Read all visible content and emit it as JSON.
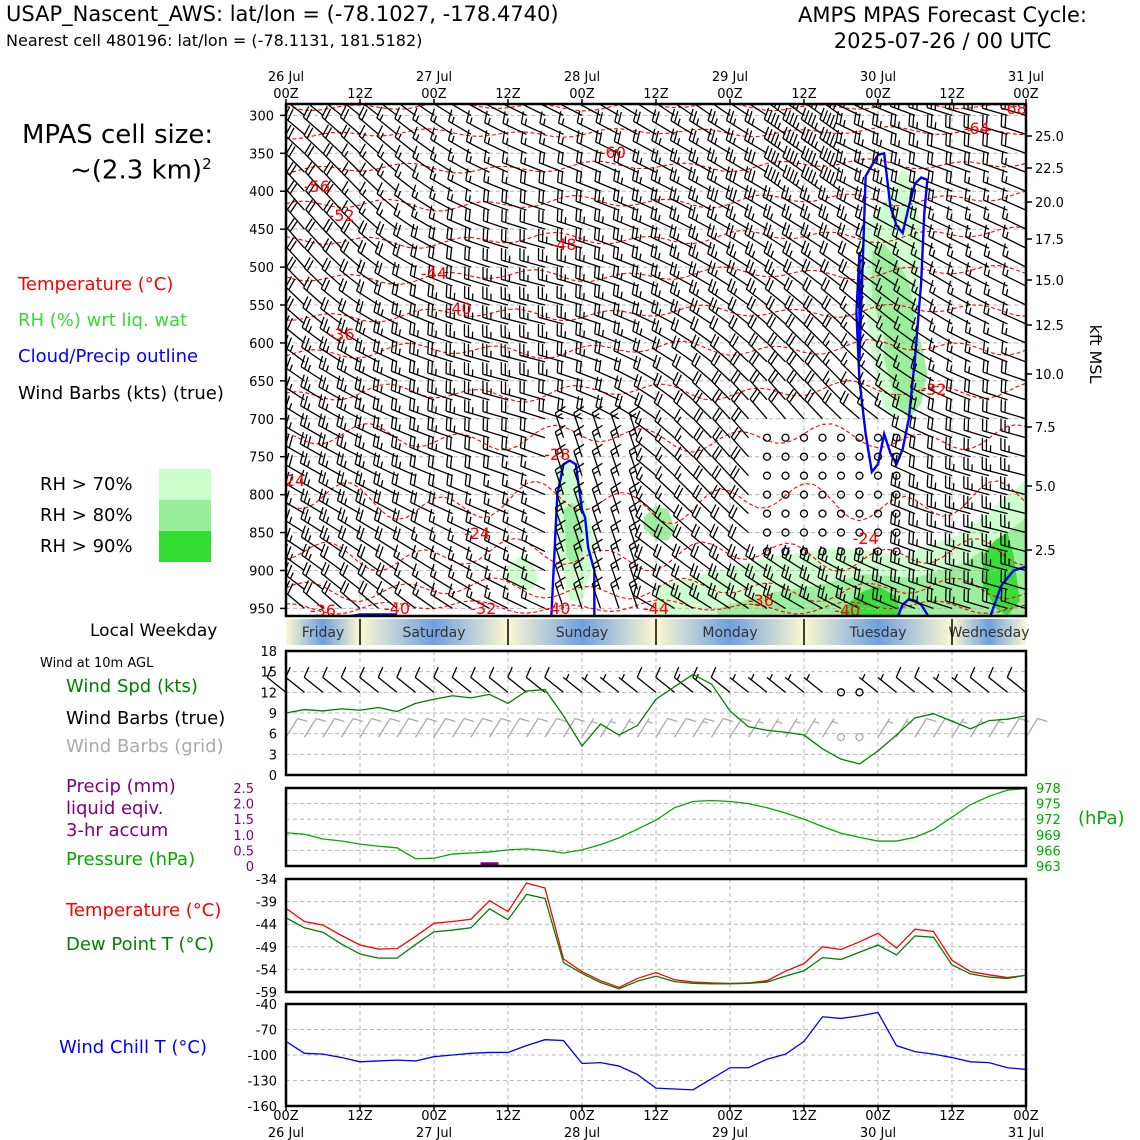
{
  "header": {
    "station_line": "USAP_Nascent_AWS: lat/lon = (-78.1027, -178.4740)",
    "cell_line": "Nearest cell 480196: lat/lon = (-78.1131, 181.5182)",
    "cycle_line1": "AMPS MPAS Forecast Cycle:",
    "cycle_line2": "2025-07-26 / 00 UTC"
  },
  "cell_size": {
    "line1": "MPAS cell size:",
    "line2": "~(2.3 km)",
    "sup": "2"
  },
  "legend": {
    "temperature": {
      "label": "Temperature (°C)",
      "color": "#ff0000"
    },
    "rh": {
      "label": "RH (%) wrt liq. wat",
      "color": "#33dd33"
    },
    "cloud": {
      "label": "Cloud/Precip outline",
      "color": "#0000ff"
    },
    "barbs": {
      "label": "Wind Barbs (kts) (true)",
      "color": "#000000"
    },
    "rh70": {
      "label": "RH > 70%",
      "color": "#ccffcc"
    },
    "rh80": {
      "label": "RH > 80%",
      "color": "#99ee99"
    },
    "rh90": {
      "label": "RH > 90%",
      "color": "#33dd33"
    }
  },
  "time_axis": {
    "top_labels": [
      {
        "hour": "00Z",
        "date": "26 Jul"
      },
      {
        "hour": "12Z",
        "date": ""
      },
      {
        "hour": "00Z",
        "date": "27 Jul"
      },
      {
        "hour": "12Z",
        "date": ""
      },
      {
        "hour": "00Z",
        "date": "28 Jul"
      },
      {
        "hour": "12Z",
        "date": ""
      },
      {
        "hour": "00Z",
        "date": "29 Jul"
      },
      {
        "hour": "12Z",
        "date": ""
      },
      {
        "hour": "00Z",
        "date": "30 Jul"
      },
      {
        "hour": "12Z",
        "date": ""
      },
      {
        "hour": "00Z",
        "date": "31 Jul"
      }
    ],
    "hours_range": [
      0,
      120
    ]
  },
  "weekday_bar": {
    "label": "Local Weekday",
    "days": [
      "Friday",
      "Saturday",
      "Sunday",
      "Monday",
      "Tuesday",
      "Wednesday"
    ]
  },
  "panels": {
    "wind": {
      "title": "Wind at 10m AGL",
      "spd_label": "Wind Spd (kts)",
      "true_label": "Wind Barbs (true)",
      "grid_label": "Wind Barbs (grid)",
      "colors": {
        "spd": "#008000",
        "true": "#000000",
        "grid": "#aaaaaa"
      }
    },
    "precip": {
      "precip_label1": "Precip (mm)",
      "precip_label2": "liquid eqiv.",
      "precip_label3": "3-hr accum",
      "pressure_label": "Pressure (hPa)",
      "hpa_unit": "(hPa)",
      "colors": {
        "precip": "#800080",
        "pressure": "#00aa00"
      }
    },
    "temp": {
      "t_label": "Temperature (°C)",
      "td_label": "Dew Point T (°C)",
      "colors": {
        "t": "#ff0000",
        "td": "#008000"
      }
    },
    "chill": {
      "label": "Wind Chill T (°C)",
      "color": "#0000ff"
    }
  },
  "chart_data": [
    {
      "type": "heatmap",
      "x_unit": "forecast hours from 2025-07-26 00 UTC",
      "y_left_ticks": [
        300,
        350,
        400,
        450,
        500,
        550,
        600,
        650,
        700,
        750,
        800,
        850,
        900,
        950
      ],
      "y_right_ticks": [
        "25.0",
        "22.5",
        "20.0",
        "17.5",
        "15.0",
        "12.5",
        "10.0",
        "7.5",
        "5.0",
        "2.5"
      ],
      "y_right_label": "kft MSL",
      "ylim_hpa": [
        285,
        960
      ],
      "temp_contour_labels": [
        "-68",
        "-64",
        "-60",
        "-56",
        "-52",
        "-48",
        "-44",
        "-40",
        "-36",
        "-32",
        "-28",
        "-24",
        "-24",
        "-24",
        "-36",
        "-40",
        "-32",
        "-40",
        "-44",
        "-36",
        "-40"
      ]
    },
    {
      "type": "line",
      "name": "wind_speed_10m",
      "ylim": [
        0,
        18
      ],
      "yticks": [
        0,
        3,
        6,
        9,
        12,
        15,
        18
      ],
      "x": [
        0,
        3,
        6,
        9,
        12,
        15,
        18,
        21,
        24,
        27,
        30,
        33,
        36,
        39,
        42,
        45,
        48,
        51,
        54,
        57,
        60,
        63,
        66,
        69,
        72,
        75,
        78,
        81,
        84,
        87,
        90,
        93,
        96,
        99,
        102,
        105,
        108,
        111,
        114,
        117,
        120
      ],
      "values": [
        9,
        9.5,
        9.3,
        9.6,
        9.4,
        9.8,
        9.2,
        10.4,
        11.0,
        11.5,
        11.2,
        11.7,
        10.4,
        12.2,
        12.4,
        8.6,
        4.2,
        7.4,
        5.8,
        7.2,
        11.0,
        12.8,
        14.6,
        13.2,
        9.3,
        7.0,
        6.5,
        6.2,
        5.8,
        3.8,
        2.3,
        1.6,
        3.5,
        5.8,
        8.3,
        8.9,
        7.8,
        6.7,
        7.9,
        8.1,
        8.6
      ]
    },
    {
      "type": "line",
      "name": "precip_pressure",
      "precip_ylim": [
        0,
        2.5
      ],
      "precip_yticks": [
        "0",
        "0.5",
        "1.0",
        "1.5",
        "2.0",
        "2.5"
      ],
      "pressure_ylim": [
        963,
        978
      ],
      "pressure_yticks": [
        963,
        966,
        969,
        972,
        975,
        978
      ],
      "x": [
        0,
        3,
        6,
        9,
        12,
        15,
        18,
        21,
        24,
        27,
        30,
        33,
        36,
        39,
        42,
        45,
        48,
        51,
        54,
        57,
        60,
        63,
        66,
        69,
        72,
        75,
        78,
        81,
        84,
        87,
        90,
        93,
        96,
        99,
        102,
        105,
        108,
        111,
        114,
        117,
        120
      ],
      "pressure": [
        969.4,
        969.1,
        968.2,
        967.8,
        967.2,
        966.8,
        966.5,
        964.4,
        964.5,
        965.3,
        965.5,
        965.7,
        966.1,
        966.3,
        966.0,
        965.5,
        966.1,
        967.1,
        968.4,
        970.1,
        971.8,
        974.2,
        975.4,
        975.6,
        975.4,
        975.0,
        974.2,
        973.2,
        972.0,
        970.6,
        969.3,
        968.5,
        967.8,
        967.8,
        968.5,
        970.0,
        972.4,
        974.8,
        976.4,
        977.6,
        977.9
      ],
      "precip_x": [
        33
      ],
      "precip_values": [
        0.12
      ]
    },
    {
      "type": "line",
      "name": "temperature_dewpoint",
      "ylim": [
        -59,
        -34
      ],
      "yticks": [
        -34,
        -39,
        -44,
        -49,
        -54,
        -59
      ],
      "x": [
        0,
        3,
        6,
        9,
        12,
        15,
        18,
        21,
        24,
        27,
        30,
        33,
        36,
        39,
        42,
        45,
        48,
        51,
        54,
        57,
        60,
        63,
        66,
        69,
        72,
        75,
        78,
        81,
        84,
        87,
        90,
        93,
        96,
        99,
        102,
        105,
        108,
        111,
        114,
        117,
        120
      ],
      "temperature": [
        -40.5,
        -43.4,
        -44.2,
        -46.5,
        -48.6,
        -49.5,
        -49.4,
        -46.7,
        -43.8,
        -43.4,
        -42.9,
        -38.8,
        -41.2,
        -34.9,
        -36.0,
        -51.7,
        -54.5,
        -56.5,
        -58.0,
        -56.0,
        -54.7,
        -56.3,
        -56.8,
        -57.0,
        -57.1,
        -57.0,
        -56.5,
        -54.4,
        -52.7,
        -49.0,
        -49.6,
        -47.9,
        -46.0,
        -49.3,
        -45.1,
        -45.6,
        -52.0,
        -54.5,
        -55.2,
        -55.8,
        -55.3
      ],
      "dewpoint": [
        -42.6,
        -44.8,
        -45.8,
        -48.4,
        -50.6,
        -51.5,
        -51.5,
        -48.5,
        -45.7,
        -45.3,
        -44.8,
        -40.6,
        -43.0,
        -37.4,
        -38.3,
        -52.5,
        -54.9,
        -56.9,
        -58.3,
        -56.6,
        -55.5,
        -56.7,
        -57.1,
        -57.2,
        -57.2,
        -57.1,
        -56.8,
        -55.5,
        -54.3,
        -51.4,
        -51.8,
        -50.2,
        -48.6,
        -50.8,
        -46.6,
        -46.9,
        -53.0,
        -55.0,
        -55.7,
        -56.0,
        -55.3
      ]
    },
    {
      "type": "line",
      "name": "wind_chill",
      "ylim": [
        -160,
        -40
      ],
      "yticks": [
        -40,
        -70,
        -100,
        -130,
        -160
      ],
      "x": [
        0,
        3,
        6,
        9,
        12,
        15,
        18,
        21,
        24,
        27,
        30,
        33,
        36,
        39,
        42,
        45,
        48,
        51,
        54,
        57,
        60,
        63,
        66,
        69,
        72,
        75,
        78,
        81,
        84,
        87,
        90,
        93,
        96,
        99,
        102,
        105,
        108,
        111,
        114,
        117,
        120
      ],
      "values": [
        -84,
        -98,
        -99,
        -103,
        -108,
        -107,
        -106,
        -107,
        -102,
        -100,
        -98,
        -97,
        -97,
        -89,
        -82,
        -83,
        -110,
        -109,
        -113,
        -123,
        -139,
        -140,
        -141,
        -128,
        -115,
        -115,
        -105,
        -99,
        -84,
        -55,
        -57,
        -54,
        -50,
        -89,
        -96,
        -99,
        -103,
        -108,
        -109,
        -115,
        -117
      ]
    }
  ]
}
